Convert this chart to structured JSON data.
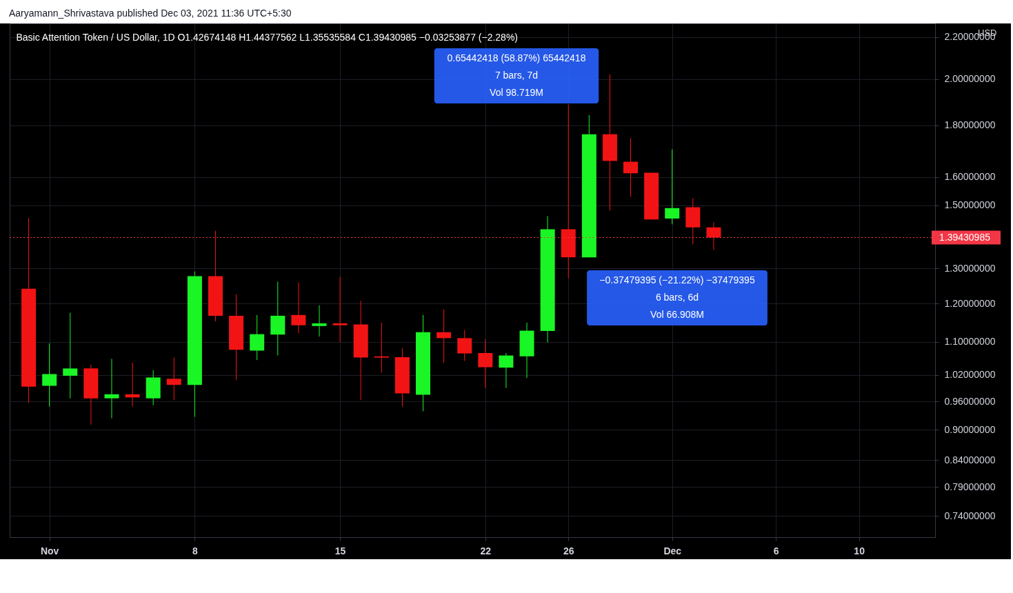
{
  "chart_data": {
    "type": "candlestick",
    "title": "Basic Attention Token / US Dollar, 1D  O1.42674148  H1.44377562  L1.35535584  C1.39430985  −0.03253877 (−2.28%)",
    "x": [
      "2021-10-31",
      "2021-11-01",
      "2021-11-02",
      "2021-11-03",
      "2021-11-04",
      "2021-11-05",
      "2021-11-06",
      "2021-11-07",
      "2021-11-08",
      "2021-11-09",
      "2021-11-10",
      "2021-11-11",
      "2021-11-12",
      "2021-11-13",
      "2021-11-14",
      "2021-11-15",
      "2021-11-16",
      "2021-11-17",
      "2021-11-18",
      "2021-11-19",
      "2021-11-20",
      "2021-11-21",
      "2021-11-22",
      "2021-11-23",
      "2021-11-24",
      "2021-11-25",
      "2021-11-26",
      "2021-11-27",
      "2021-11-28",
      "2021-11-29",
      "2021-11-30",
      "2021-12-01",
      "2021-12-02",
      "2021-12-03"
    ],
    "ohlc": [
      [
        1.241,
        1.457,
        0.957,
        0.993
      ],
      [
        0.995,
        1.096,
        0.949,
        1.022
      ],
      [
        1.018,
        1.175,
        0.967,
        1.035
      ],
      [
        1.035,
        1.044,
        0.911,
        0.967
      ],
      [
        0.967,
        1.058,
        0.924,
        0.976
      ],
      [
        0.976,
        1.049,
        0.949,
        0.969
      ],
      [
        0.967,
        1.031,
        0.952,
        1.014
      ],
      [
        1.011,
        1.061,
        0.963,
        0.997
      ],
      [
        0.997,
        1.291,
        0.927,
        1.277
      ],
      [
        1.277,
        1.416,
        1.152,
        1.167
      ],
      [
        1.167,
        1.226,
        1.008,
        1.08
      ],
      [
        1.078,
        1.169,
        1.055,
        1.119
      ],
      [
        1.118,
        1.261,
        1.066,
        1.167
      ],
      [
        1.169,
        1.259,
        1.121,
        1.142
      ],
      [
        1.14,
        1.195,
        1.113,
        1.147
      ],
      [
        1.147,
        1.275,
        1.099,
        1.142
      ],
      [
        1.144,
        1.207,
        0.963,
        1.061
      ],
      [
        1.064,
        1.149,
        1.025,
        1.061
      ],
      [
        1.062,
        1.084,
        0.949,
        0.978
      ],
      [
        0.975,
        1.169,
        0.939,
        1.124
      ],
      [
        1.124,
        1.184,
        1.048,
        1.109
      ],
      [
        1.109,
        1.13,
        1.053,
        1.071
      ],
      [
        1.072,
        1.106,
        0.99,
        1.038
      ],
      [
        1.037,
        1.072,
        0.99,
        1.066
      ],
      [
        1.064,
        1.149,
        1.013,
        1.128
      ],
      [
        1.127,
        1.464,
        1.098,
        1.421
      ],
      [
        1.421,
        1.887,
        1.271,
        1.333
      ],
      [
        1.333,
        1.843,
        1.333,
        1.764
      ],
      [
        1.764,
        2.022,
        1.483,
        1.66
      ],
      [
        1.657,
        1.748,
        1.53,
        1.614
      ],
      [
        1.616,
        1.616,
        1.453,
        1.453
      ],
      [
        1.456,
        1.704,
        1.437,
        1.491
      ],
      [
        1.494,
        1.525,
        1.373,
        1.427
      ],
      [
        1.42674148,
        1.44377562,
        1.35535584,
        1.39430985
      ]
    ],
    "colors": [
      "#f21414",
      "#1af526",
      "#1af526",
      "#f21414",
      "#1af526",
      "#f21414",
      "#1af526",
      "#f21414",
      "#1af526",
      "#f21414",
      "#f21414",
      "#1af526",
      "#1af526",
      "#f21414",
      "#1af526",
      "#f21414",
      "#f21414",
      "#f21414",
      "#f21414",
      "#1af526",
      "#f21414",
      "#f21414",
      "#f21414",
      "#1af526",
      "#1af526",
      "#1af526",
      "#f21414",
      "#1af526",
      "#f21414",
      "#f21414",
      "#f21414",
      "#1af526",
      "#f21414",
      "#f21414"
    ],
    "xlim": [
      "2021-10-30T06:00",
      "2021-12-13T12:00"
    ],
    "xticks": [
      {
        "value": "2021-11-01",
        "label": "Nov"
      },
      {
        "value": "2021-11-08",
        "label": "8"
      },
      {
        "value": "2021-11-15",
        "label": "15"
      },
      {
        "value": "2021-11-22",
        "label": "22"
      },
      {
        "value": "2021-11-26",
        "label": "26"
      },
      {
        "value": "2021-12-01",
        "label": "Dec"
      },
      {
        "value": "2021-12-06",
        "label": "6"
      },
      {
        "value": "2021-12-10",
        "label": "10"
      }
    ],
    "ylim": [
      0.705,
      2.27
    ],
    "log": true,
    "yticks": [
      {
        "value": 0.74,
        "label": "0.74000000"
      },
      {
        "value": 0.79,
        "label": "0.79000000"
      },
      {
        "value": 0.84,
        "label": "0.84000000"
      },
      {
        "value": 0.9,
        "label": "0.90000000"
      },
      {
        "value": 0.96,
        "label": "0.96000000"
      },
      {
        "value": 1.02,
        "label": "1.02000000"
      },
      {
        "value": 1.1,
        "label": "1.10000000"
      },
      {
        "value": 1.2,
        "label": "1.20000000"
      },
      {
        "value": 1.3,
        "label": "1.30000000"
      },
      {
        "value": 1.5,
        "label": "1.50000000"
      },
      {
        "value": 1.6,
        "label": "1.60000000"
      },
      {
        "value": 1.8,
        "label": "1.80000000"
      },
      {
        "value": 2,
        "label": "2.00000000"
      },
      {
        "value": 2.2,
        "label": "2.20000000"
      }
    ],
    "ref_lines": [
      {
        "axis": "y",
        "value": 1.39430985,
        "label": "1.39430985",
        "color": "#f23645",
        "line_style": "dotted"
      }
    ],
    "annotations": [
      "Aaryamann_Shrivastava published Dec 03, 2021 11:36 UTC+5:30",
      "USD",
      "0.65442418 (58.87%) 65442418\n7 bars, 7d\nVol 98.719M",
      "−0.37479395 (−21.22%) −37479395\n6 bars, 6d\nVol 66.908M"
    ],
    "grid": true
  }
}
